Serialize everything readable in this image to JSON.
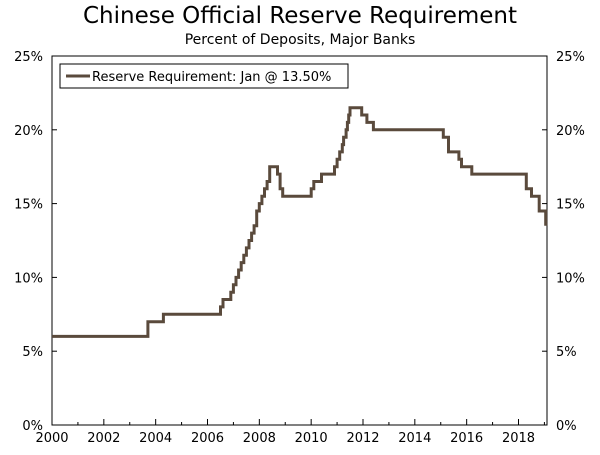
{
  "chart_data": {
    "type": "line",
    "title": "Chinese Official Reserve Requirement",
    "subtitle": "Percent of Deposits, Major Banks",
    "xlabel": "",
    "ylabel": "",
    "xlim": [
      2000,
      2019.1
    ],
    "ylim": [
      0,
      25
    ],
    "x_ticks": [
      2000,
      2002,
      2004,
      2006,
      2008,
      2010,
      2012,
      2014,
      2016,
      2018
    ],
    "x_tick_labels": [
      "2000",
      "2002",
      "2004",
      "2006",
      "2008",
      "2010",
      "2012",
      "2014",
      "2016",
      "2018"
    ],
    "y_ticks": [
      0,
      5,
      10,
      15,
      20,
      25
    ],
    "y_tick_labels": [
      "0%",
      "5%",
      "10%",
      "15%",
      "20%",
      "25%"
    ],
    "grid": false,
    "legend": {
      "position": "top-left",
      "boxed": true
    },
    "series": [
      {
        "name": "Reserve Requirement: Jan @ 13.50%",
        "color": "#5a4a3c",
        "step": true,
        "points": [
          [
            2000.0,
            6.0
          ],
          [
            2003.7,
            7.0
          ],
          [
            2004.3,
            7.5
          ],
          [
            2006.5,
            8.0
          ],
          [
            2006.6,
            8.5
          ],
          [
            2006.9,
            9.0
          ],
          [
            2007.0,
            9.5
          ],
          [
            2007.1,
            10.0
          ],
          [
            2007.2,
            10.5
          ],
          [
            2007.3,
            11.0
          ],
          [
            2007.4,
            11.5
          ],
          [
            2007.5,
            12.0
          ],
          [
            2007.6,
            12.5
          ],
          [
            2007.7,
            13.0
          ],
          [
            2007.8,
            13.5
          ],
          [
            2007.9,
            14.5
          ],
          [
            2008.0,
            15.0
          ],
          [
            2008.1,
            15.5
          ],
          [
            2008.2,
            16.0
          ],
          [
            2008.3,
            16.5
          ],
          [
            2008.4,
            17.5
          ],
          [
            2008.7,
            17.0
          ],
          [
            2008.8,
            16.0
          ],
          [
            2008.9,
            15.5
          ],
          [
            2010.0,
            16.0
          ],
          [
            2010.1,
            16.5
          ],
          [
            2010.4,
            17.0
          ],
          [
            2010.9,
            17.5
          ],
          [
            2011.0,
            18.0
          ],
          [
            2011.1,
            18.5
          ],
          [
            2011.2,
            19.0
          ],
          [
            2011.25,
            19.5
          ],
          [
            2011.35,
            20.0
          ],
          [
            2011.4,
            20.5
          ],
          [
            2011.45,
            21.0
          ],
          [
            2011.5,
            21.5
          ],
          [
            2011.95,
            21.0
          ],
          [
            2012.15,
            20.5
          ],
          [
            2012.4,
            20.0
          ],
          [
            2015.1,
            19.5
          ],
          [
            2015.3,
            18.5
          ],
          [
            2015.7,
            18.0
          ],
          [
            2015.8,
            17.5
          ],
          [
            2016.2,
            17.0
          ],
          [
            2018.3,
            16.0
          ],
          [
            2018.5,
            15.5
          ],
          [
            2018.8,
            14.5
          ],
          [
            2019.05,
            13.5
          ]
        ]
      }
    ]
  }
}
